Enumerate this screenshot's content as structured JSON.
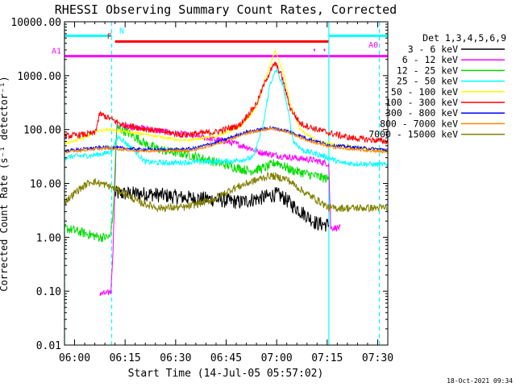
{
  "chart_data": {
    "type": "line",
    "title": "RHESSI Observing Summary Count Rates, Corrected",
    "xlabel": "Start Time (14-Jul-05 05:57:02)",
    "ylabel": "Corrected Count Rate (s⁻¹ detector⁻¹)",
    "footer": "18-Oct-2021 09:34",
    "x_unit": "minutes after 05:57:02",
    "xlim": [
      0,
      96
    ],
    "ylim": [
      0.01,
      10000
    ],
    "y_scale": "log",
    "grid": false,
    "legend_position": "top-right",
    "legend_title": "Det 1,3,4,5,6,9",
    "x_ticks": [
      {
        "x": 3,
        "label": "06:00"
      },
      {
        "x": 18,
        "label": "06:15"
      },
      {
        "x": 33,
        "label": "06:30"
      },
      {
        "x": 48,
        "label": "06:45"
      },
      {
        "x": 63,
        "label": "07:00"
      },
      {
        "x": 78,
        "label": "07:15"
      },
      {
        "x": 93,
        "label": "07:30"
      }
    ],
    "y_ticks": [
      {
        "y": 0.01,
        "label": "0.01"
      },
      {
        "y": 0.1,
        "label": "0.10"
      },
      {
        "y": 1,
        "label": "1.00"
      },
      {
        "y": 10,
        "label": "10.00"
      },
      {
        "y": 100,
        "label": "100.00"
      },
      {
        "y": 1000,
        "label": "1000.00"
      },
      {
        "y": 10000,
        "label": "10000.00"
      }
    ],
    "vlines": [
      {
        "x": 0,
        "color": "#00ffff",
        "style": "dashed"
      },
      {
        "x": 14,
        "color": "#00ffff",
        "style": "dashed"
      },
      {
        "x": 78.5,
        "color": "#00ffff",
        "style": "solid"
      },
      {
        "x": 93.5,
        "color": "#00ffff",
        "style": "dashed"
      }
    ],
    "flags": [
      {
        "label": "N",
        "color": "#00ffff",
        "y": 5500,
        "segments": [
          [
            0,
            14
          ],
          [
            78.5,
            96
          ]
        ]
      },
      {
        "label": "F",
        "color": "#ff0000",
        "y": 4300,
        "segments": [
          [
            15,
            78.5
          ]
        ]
      },
      {
        "label": "A0",
        "color": "#ff00ff",
        "y": 3000,
        "segments": [
          [
            74,
            74.4
          ],
          [
            77,
            77.4
          ]
        ]
      },
      {
        "label": "A1",
        "color": "#ff00ff",
        "y": 2300,
        "segments": [
          [
            0,
            96
          ]
        ]
      }
    ],
    "series": [
      {
        "name": "3 - 6 keV",
        "color": "#000000",
        "noise": 0.28,
        "points": [
          [
            15,
            6.5
          ],
          [
            25,
            6.4
          ],
          [
            35,
            5.5
          ],
          [
            45,
            5.0
          ],
          [
            52,
            4.5
          ],
          [
            58,
            5.3
          ],
          [
            63,
            6.3
          ],
          [
            65,
            5.5
          ],
          [
            68,
            3.8
          ],
          [
            72,
            2.5
          ],
          [
            75,
            1.8
          ],
          [
            78.5,
            1.7
          ]
        ]
      },
      {
        "name": "6 - 12 keV",
        "color": "#ff00ff",
        "noise": 0.12,
        "points": [
          [
            10.5,
            0.09
          ],
          [
            12.5,
            0.09
          ],
          [
            13.8,
            0.1
          ],
          [
            14.4,
            0.6
          ],
          [
            15.5,
            115
          ],
          [
            22,
            110
          ],
          [
            30,
            90
          ],
          [
            36,
            80
          ],
          [
            42,
            70
          ],
          [
            48,
            60
          ],
          [
            54,
            48
          ],
          [
            58,
            38
          ],
          [
            63,
            33
          ],
          [
            68,
            30
          ],
          [
            74,
            27
          ],
          [
            78.5,
            23
          ],
          [
            79,
            1.5
          ],
          [
            82,
            1.5
          ]
        ]
      },
      {
        "name": "12 - 25 keV",
        "color": "#00dd00",
        "noise": 0.18,
        "points": [
          [
            0,
            1.5
          ],
          [
            10.5,
            1.0
          ],
          [
            13.5,
            1.0
          ],
          [
            14.5,
            3.0
          ],
          [
            15.5,
            110
          ],
          [
            20,
            80
          ],
          [
            25,
            50
          ],
          [
            30,
            40
          ],
          [
            36,
            35
          ],
          [
            42,
            28
          ],
          [
            48,
            22
          ],
          [
            55,
            17
          ],
          [
            60,
            20
          ],
          [
            63,
            25
          ],
          [
            67,
            18
          ],
          [
            72,
            15
          ],
          [
            76,
            13
          ],
          [
            78.5,
            12
          ]
        ]
      },
      {
        "name": "25 - 50 keV",
        "color": "#00ffff",
        "noise": 0.1,
        "points": [
          [
            0,
            30
          ],
          [
            3,
            32
          ],
          [
            8,
            33
          ],
          [
            12,
            36
          ],
          [
            14,
            40
          ],
          [
            16,
            75
          ],
          [
            20,
            45
          ],
          [
            24,
            25
          ],
          [
            30,
            24
          ],
          [
            40,
            25
          ],
          [
            50,
            26
          ],
          [
            56,
            30
          ],
          [
            59,
            120
          ],
          [
            61,
            700
          ],
          [
            63,
            1300
          ],
          [
            65,
            600
          ],
          [
            66.5,
            200
          ],
          [
            68,
            60
          ],
          [
            71,
            40
          ],
          [
            73,
            38
          ],
          [
            78.5,
            30
          ],
          [
            82,
            24
          ],
          [
            96,
            22
          ]
        ]
      },
      {
        "name": "50 - 100 keV",
        "color": "#ffff00",
        "noise": 0.05,
        "points": [
          [
            0,
            55
          ],
          [
            6,
            70
          ],
          [
            10,
            95
          ],
          [
            13,
            100
          ],
          [
            16,
            95
          ],
          [
            25,
            80
          ],
          [
            35,
            62
          ],
          [
            45,
            75
          ],
          [
            52,
            110
          ],
          [
            57,
            250
          ],
          [
            60,
            1000
          ],
          [
            62.5,
            2900
          ],
          [
            65,
            1200
          ],
          [
            67,
            300
          ],
          [
            70,
            100
          ],
          [
            75,
            60
          ],
          [
            85,
            48
          ],
          [
            96,
            40
          ]
        ]
      },
      {
        "name": "100 - 300 keV",
        "color": "#ff0000",
        "noise": 0.12,
        "points": [
          [
            0,
            75
          ],
          [
            5,
            80
          ],
          [
            9,
            85
          ],
          [
            10.5,
            195
          ],
          [
            13,
            165
          ],
          [
            17,
            125
          ],
          [
            25,
            100
          ],
          [
            35,
            80
          ],
          [
            45,
            90
          ],
          [
            52,
            120
          ],
          [
            57,
            300
          ],
          [
            60,
            900
          ],
          [
            62.5,
            1700
          ],
          [
            64.5,
            1000
          ],
          [
            67,
            250
          ],
          [
            70,
            130
          ],
          [
            75,
            100
          ],
          [
            79,
            85
          ],
          [
            85,
            70
          ],
          [
            96,
            60
          ]
        ]
      },
      {
        "name": "300 - 800 keV",
        "color": "#0000ff",
        "noise": 0.06,
        "points": [
          [
            0,
            40
          ],
          [
            8,
            45
          ],
          [
            13,
            47
          ],
          [
            15,
            46
          ],
          [
            22,
            43
          ],
          [
            30,
            42
          ],
          [
            38,
            44
          ],
          [
            46,
            60
          ],
          [
            54,
            90
          ],
          [
            61,
            108
          ],
          [
            66,
            95
          ],
          [
            72,
            68
          ],
          [
            78.5,
            52
          ],
          [
            85,
            47
          ],
          [
            96,
            42
          ]
        ]
      },
      {
        "name": "800 - 7000 keV",
        "color": "#ff8800",
        "noise": 0.05,
        "points": [
          [
            0,
            38
          ],
          [
            8,
            43
          ],
          [
            13,
            45
          ],
          [
            15,
            44
          ],
          [
            22,
            40
          ],
          [
            30,
            40
          ],
          [
            38,
            41
          ],
          [
            46,
            56
          ],
          [
            54,
            85
          ],
          [
            61,
            105
          ],
          [
            66,
            92
          ],
          [
            72,
            63
          ],
          [
            78.5,
            48
          ],
          [
            85,
            43
          ],
          [
            96,
            38
          ]
        ]
      },
      {
        "name": "7000 - 15000 keV",
        "color": "#808000",
        "noise": 0.14,
        "points": [
          [
            0,
            4.5
          ],
          [
            4,
            7.5
          ],
          [
            8,
            11
          ],
          [
            12,
            9.5
          ],
          [
            14,
            8.5
          ],
          [
            18,
            6.5
          ],
          [
            22,
            4.5
          ],
          [
            28,
            3.5
          ],
          [
            36,
            3.6
          ],
          [
            44,
            5
          ],
          [
            50,
            8
          ],
          [
            56,
            11
          ],
          [
            61,
            14
          ],
          [
            66,
            12
          ],
          [
            71,
            7
          ],
          [
            76,
            4.5
          ],
          [
            78.5,
            3.5
          ],
          [
            85,
            3.5
          ],
          [
            96,
            3.5
          ]
        ]
      }
    ]
  }
}
